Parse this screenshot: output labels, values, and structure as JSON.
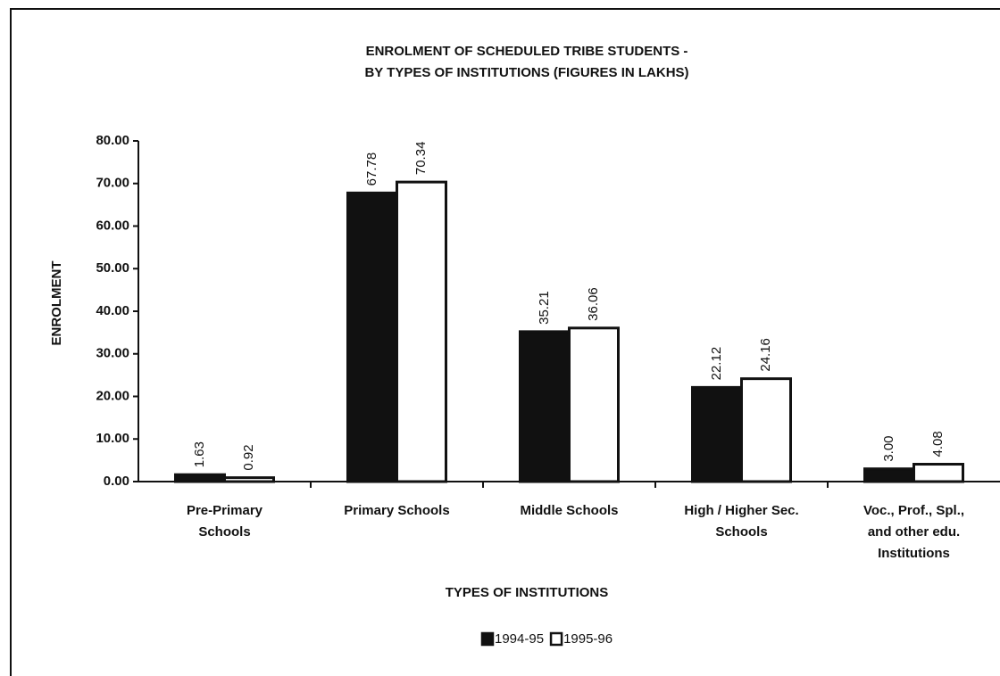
{
  "chart_data": {
    "type": "bar",
    "title": [
      "ENROLMENT OF SCHEDULED TRIBE STUDENTS -",
      "BY TYPES OF INSTITUTIONS (FIGURES IN LAKHS)"
    ],
    "x_label": "TYPES OF INSTITUTIONS",
    "y_label": "ENROLMENT",
    "categories": [
      [
        "Pre-Primary",
        "Schools"
      ],
      [
        "Primary Schools"
      ],
      [
        "Middle Schools"
      ],
      [
        "High / Higher Sec.",
        "Schools"
      ],
      [
        "Voc., Prof., Spl.,",
        "and other edu.",
        "Institutions"
      ]
    ],
    "series": [
      {
        "name": "1994-95",
        "color": "#111111",
        "values": [
          1.63,
          67.78,
          35.21,
          22.12,
          3.0
        ],
        "value_labels": [
          "1.63",
          "67.78",
          "35.21",
          "22.12",
          "3.00"
        ]
      },
      {
        "name": "1995-96",
        "color": "#ffffff",
        "values": [
          0.92,
          70.34,
          36.06,
          24.16,
          4.08
        ],
        "value_labels": [
          "0.92",
          "70.34",
          "36.06",
          "24.16",
          "4.08"
        ]
      }
    ],
    "ylim": [
      0,
      80
    ],
    "yticks": [
      {
        "value": 0,
        "label": "0.00"
      },
      {
        "value": 10,
        "label": "10.00"
      },
      {
        "value": 20,
        "label": "20.00"
      },
      {
        "value": 30,
        "label": "30.00"
      },
      {
        "value": 40,
        "label": "40.00"
      },
      {
        "value": 50,
        "label": "50.00"
      },
      {
        "value": 60,
        "label": "60.00"
      },
      {
        "value": 70,
        "label": "70.00"
      },
      {
        "value": 80,
        "label": "80.00"
      }
    ],
    "legend": "bottom"
  }
}
